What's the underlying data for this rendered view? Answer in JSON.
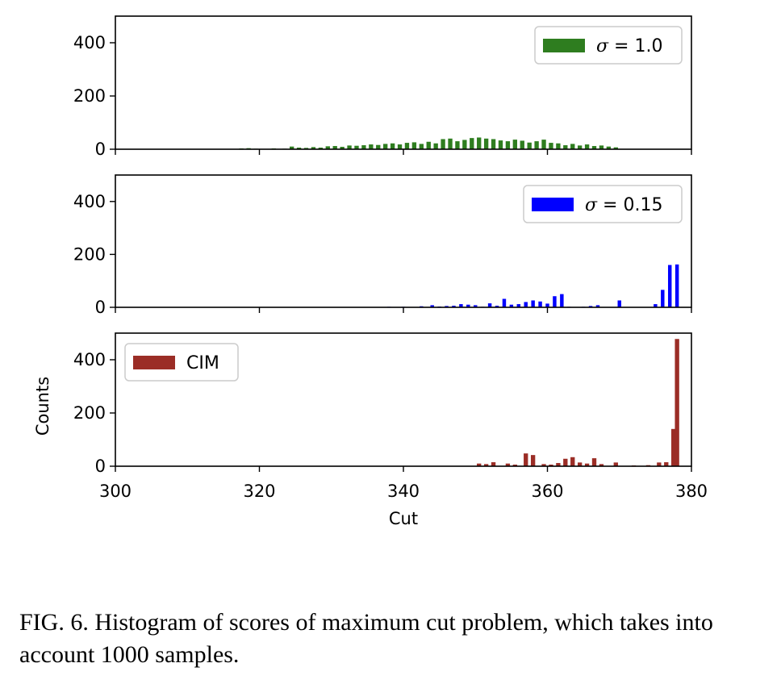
{
  "chart_data": [
    {
      "type": "bar",
      "legend": {
        "label": "σ = 1.0",
        "symbol": "σ",
        "text": " = 1.0",
        "position": "upper right"
      },
      "color": "#2e7d1f",
      "ylim": [
        0,
        500
      ],
      "xlim": [
        300,
        380
      ],
      "yticks": [
        0,
        200,
        400
      ],
      "xticks": [
        300,
        320,
        340,
        360,
        380
      ],
      "xtick_labels_visible": false,
      "ylabel": "",
      "bin_width": 0.6,
      "x": [
        317.5,
        318.5,
        319.5,
        320.5,
        322,
        323.5,
        324.5,
        325.5,
        326.5,
        327.5,
        328.5,
        329.5,
        330.5,
        331.5,
        332.5,
        333.5,
        334.5,
        335.5,
        336.5,
        337.5,
        338.5,
        339.5,
        340.5,
        341.5,
        342.5,
        343.5,
        344.5,
        345.5,
        346.5,
        347.5,
        348.5,
        349.5,
        350.5,
        351.5,
        352.5,
        353.5,
        354.5,
        355.5,
        356.5,
        357.5,
        358.5,
        359.5,
        360.5,
        361.5,
        362.5,
        363.5,
        364.5,
        365.5,
        366.5,
        367.5,
        368.5,
        369.5
      ],
      "values": [
        3,
        4,
        2,
        1,
        3,
        2,
        10,
        6,
        5,
        8,
        6,
        11,
        12,
        9,
        14,
        13,
        15,
        18,
        16,
        20,
        22,
        18,
        24,
        26,
        20,
        28,
        22,
        38,
        40,
        30,
        35,
        42,
        44,
        40,
        38,
        33,
        30,
        36,
        32,
        25,
        30,
        36,
        24,
        22,
        15,
        20,
        14,
        18,
        12,
        14,
        10,
        7
      ]
    },
    {
      "type": "bar",
      "legend": {
        "label": "σ = 0.15",
        "symbol": "σ",
        "text": " = 0.15",
        "position": "upper right"
      },
      "color": "#0000ff",
      "ylim": [
        0,
        500
      ],
      "xlim": [
        300,
        380
      ],
      "yticks": [
        0,
        200,
        400
      ],
      "xticks": [
        300,
        320,
        340,
        360,
        380
      ],
      "xtick_labels_visible": false,
      "ylabel": "",
      "bin_width": 0.5,
      "x": [
        338,
        339,
        340,
        341,
        342.5,
        344,
        345,
        346,
        347,
        348,
        349,
        350,
        351,
        352,
        353,
        354,
        355,
        356,
        357,
        358,
        359,
        360,
        361,
        362,
        363,
        365,
        366,
        367,
        370,
        375,
        376,
        377,
        378
      ],
      "values": [
        2,
        1,
        2,
        1,
        4,
        8,
        3,
        5,
        6,
        12,
        10,
        8,
        2,
        15,
        6,
        32,
        10,
        12,
        20,
        26,
        22,
        14,
        42,
        50,
        2,
        2,
        5,
        8,
        26,
        12,
        66,
        160,
        162
      ]
    },
    {
      "type": "bar",
      "legend": {
        "label": "CIM",
        "position": "upper left"
      },
      "color": "#9b2d26",
      "ylim": [
        0,
        500
      ],
      "xlim": [
        300,
        380
      ],
      "yticks": [
        0,
        200,
        400
      ],
      "xticks": [
        300,
        320,
        340,
        360,
        380
      ],
      "xtick_labels_visible": true,
      "xlabel": "Cut",
      "ylabel": "Counts",
      "bin_width": 0.6,
      "x": [
        350.5,
        351.5,
        352.5,
        354.5,
        355.5,
        357,
        358,
        359.5,
        360.5,
        361.5,
        362.5,
        363.5,
        364.5,
        365.5,
        366.5,
        367.5,
        369.5,
        372,
        374,
        375.5,
        376.5,
        377.5,
        378
      ],
      "values": [
        10,
        8,
        15,
        10,
        6,
        48,
        42,
        8,
        6,
        12,
        28,
        34,
        14,
        10,
        30,
        8,
        14,
        3,
        4,
        14,
        15,
        140,
        478
      ]
    }
  ],
  "caption": "FIG. 6. Histogram of scores of maximum cut problem, which takes into account 1000 samples."
}
